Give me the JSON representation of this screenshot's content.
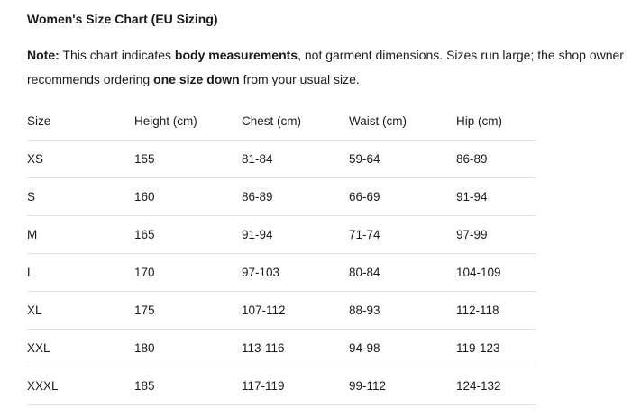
{
  "title": "Women's Size Chart (EU Sizing)",
  "note": {
    "label": "Note:",
    "t1": " This chart indicates ",
    "b1": "body measurements",
    "t2": ", not garment dimensions. Sizes run large; the shop owner recommends ordering ",
    "b2": "one size down",
    "t3": " from your usual size."
  },
  "table": {
    "headers": [
      "Size",
      "Height (cm)",
      "Chest (cm)",
      "Waist (cm)",
      "Hip (cm)"
    ],
    "rows": [
      [
        "XS",
        "155",
        "81-84",
        "59-64",
        "86-89"
      ],
      [
        "S",
        "160",
        "86-89",
        "66-69",
        "91-94"
      ],
      [
        "M",
        "165",
        "91-94",
        "71-74",
        "97-99"
      ],
      [
        "L",
        "170",
        "97-103",
        "80-84",
        "104-109"
      ],
      [
        "XL",
        "175",
        "107-112",
        "88-93",
        "112-118"
      ],
      [
        "XXL",
        "180",
        "113-116",
        "94-98",
        "119-123"
      ],
      [
        "XXXL",
        "185",
        "117-119",
        "99-112",
        "124-132"
      ]
    ]
  }
}
